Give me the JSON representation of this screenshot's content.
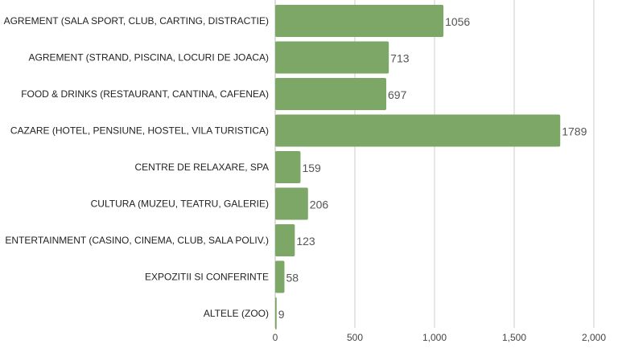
{
  "chart_data": {
    "type": "bar",
    "orientation": "horizontal",
    "categories": [
      "AGREMENT (SALA SPORT, CLUB, CARTING, DISTRACTIE)",
      "AGREMENT (STRAND, PISCINA, LOCURI DE JOACA)",
      "FOOD & DRINKS (RESTAURANT, CANTINA, CAFENEA)",
      "CAZARE (HOTEL, PENSIUNE, HOSTEL, VILA TURISTICA)",
      "CENTRE DE RELAXARE, SPA",
      "CULTURA (MUZEU, TEATRU, GALERIE)",
      "ENTERTAINMENT (CASINO, CINEMA, CLUB, SALA POLIV.)",
      "EXPOZITII SI CONFERINTE",
      "ALTELE (ZOO)"
    ],
    "values": [
      1056,
      713,
      697,
      1789,
      159,
      206,
      123,
      58,
      9
    ],
    "value_labels": [
      "1056",
      "713",
      "697",
      "1789",
      "159",
      "206",
      "123",
      "58",
      "9"
    ],
    "xlim": [
      0,
      2000
    ],
    "xticks": [
      0,
      500,
      1000,
      1500,
      2000
    ],
    "xtick_labels": [
      "0",
      "500",
      "1,000",
      "1,500",
      "2,000"
    ],
    "grid": "vertical",
    "legend": "none",
    "title": "",
    "xlabel": "",
    "ylabel": "",
    "bar_color": "#7da766",
    "grid_color": "#cccccc"
  }
}
